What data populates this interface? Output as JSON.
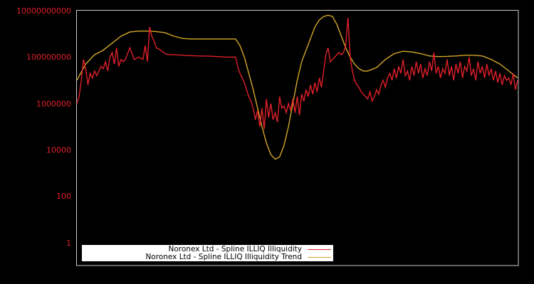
{
  "chart_data": {
    "type": "line",
    "title": "",
    "xlabel": "",
    "ylabel": "",
    "yscale": "log",
    "ylim": [
      0.3,
      10000000000
    ],
    "yticks": [
      1,
      100,
      10000,
      1000000,
      100000000,
      10000000000
    ],
    "ytick_labels": [
      "1",
      "100",
      "10000",
      "1000000",
      "100000000",
      "10000000000"
    ],
    "xticks": [],
    "grid": false,
    "legend_position": "lower-left",
    "series": [
      {
        "name": "Noronex Ltd - Spline ILLIQ Illiquidity",
        "color": "#e0202a",
        "x_norm": [
          0,
          0.005,
          0.01,
          0.015,
          0.02,
          0.025,
          0.03,
          0.035,
          0.04,
          0.045,
          0.05,
          0.055,
          0.06,
          0.065,
          0.07,
          0.075,
          0.08,
          0.085,
          0.09,
          0.095,
          0.1,
          0.105,
          0.11,
          0.12,
          0.13,
          0.14,
          0.15,
          0.155,
          0.16,
          0.165,
          0.17,
          0.175,
          0.18,
          0.19,
          0.2,
          0.21,
          0.22,
          0.24,
          0.26,
          0.28,
          0.3,
          0.32,
          0.34,
          0.36,
          0.365,
          0.37,
          0.375,
          0.38,
          0.385,
          0.39,
          0.395,
          0.4,
          0.405,
          0.41,
          0.415,
          0.42,
          0.425,
          0.43,
          0.435,
          0.44,
          0.445,
          0.45,
          0.455,
          0.46,
          0.465,
          0.47,
          0.475,
          0.48,
          0.485,
          0.49,
          0.495,
          0.5,
          0.505,
          0.51,
          0.515,
          0.52,
          0.525,
          0.53,
          0.535,
          0.54,
          0.545,
          0.55,
          0.555,
          0.56,
          0.565,
          0.57,
          0.575,
          0.58,
          0.585,
          0.59,
          0.595,
          0.6,
          0.605,
          0.61,
          0.615,
          0.62,
          0.625,
          0.63,
          0.635,
          0.64,
          0.645,
          0.65,
          0.655,
          0.66,
          0.665,
          0.67,
          0.675,
          0.68,
          0.685,
          0.69,
          0.695,
          0.7,
          0.705,
          0.71,
          0.715,
          0.72,
          0.725,
          0.73,
          0.735,
          0.74,
          0.745,
          0.75,
          0.755,
          0.76,
          0.765,
          0.77,
          0.775,
          0.78,
          0.785,
          0.79,
          0.795,
          0.8,
          0.805,
          0.81,
          0.815,
          0.82,
          0.825,
          0.83,
          0.835,
          0.84,
          0.845,
          0.85,
          0.855,
          0.86,
          0.865,
          0.87,
          0.875,
          0.88,
          0.885,
          0.89,
          0.895,
          0.9,
          0.905,
          0.91,
          0.915,
          0.92,
          0.925,
          0.93,
          0.935,
          0.94,
          0.945,
          0.95,
          0.955,
          0.96,
          0.965,
          0.97,
          0.975,
          0.98,
          0.985,
          0.99,
          0.995,
          1
        ],
        "y_log10": [
          6.0,
          6.3,
          7.0,
          7.9,
          7.5,
          6.8,
          7.3,
          7.1,
          7.4,
          7.2,
          7.4,
          7.6,
          7.5,
          7.8,
          7.4,
          8.0,
          8.2,
          7.7,
          8.4,
          7.6,
          7.9,
          7.8,
          7.9,
          8.4,
          7.9,
          8.0,
          7.9,
          8.5,
          7.8,
          9.3,
          8.9,
          8.7,
          8.4,
          8.3,
          8.15,
          8.1,
          8.1,
          8.08,
          8.06,
          8.05,
          8.04,
          8.02,
          8.0,
          8.0,
          7.6,
          7.3,
          7.1,
          6.9,
          6.6,
          6.3,
          6.1,
          5.8,
          5.3,
          5.7,
          5.0,
          5.8,
          4.9,
          6.2,
          5.4,
          6.0,
          5.3,
          5.6,
          5.2,
          6.3,
          5.8,
          5.9,
          5.6,
          6.0,
          5.7,
          6.2,
          5.6,
          6.3,
          5.5,
          6.4,
          6.1,
          6.6,
          6.3,
          6.8,
          6.4,
          6.9,
          6.5,
          7.1,
          6.7,
          7.4,
          8.1,
          8.4,
          7.8,
          7.9,
          8.0,
          8.1,
          8.2,
          8.1,
          8.2,
          8.5,
          9.7,
          8.0,
          7.4,
          7.0,
          6.8,
          6.7,
          6.5,
          6.4,
          6.3,
          6.2,
          6.5,
          6.1,
          6.3,
          6.6,
          6.4,
          6.8,
          7.0,
          6.7,
          7.1,
          7.3,
          7.0,
          7.5,
          7.1,
          7.6,
          7.3,
          7.9,
          7.2,
          7.4,
          7.0,
          7.6,
          7.2,
          7.8,
          7.3,
          7.7,
          7.1,
          7.5,
          7.2,
          7.8,
          7.4,
          8.2,
          7.3,
          7.6,
          7.1,
          7.5,
          7.3,
          7.9,
          7.2,
          7.6,
          7.0,
          7.7,
          7.3,
          7.8,
          7.1,
          7.6,
          7.4,
          8.0,
          7.2,
          7.5,
          7.0,
          7.8,
          7.3,
          7.6,
          7.1,
          7.7,
          7.2,
          7.5,
          7.0,
          7.4,
          6.9,
          7.3,
          6.8,
          7.2,
          7.0,
          7.1,
          6.8,
          7.3,
          6.6,
          7.0,
          6.5,
          6.8,
          6.6,
          6.3,
          6.0
        ]
      },
      {
        "name": "Noronex Ltd - Spline ILLIQ Illiquidity Trend",
        "color": "#d4a82a",
        "x_norm": [
          0,
          0.02,
          0.04,
          0.06,
          0.08,
          0.1,
          0.12,
          0.14,
          0.16,
          0.18,
          0.2,
          0.22,
          0.24,
          0.26,
          0.28,
          0.3,
          0.32,
          0.34,
          0.36,
          0.37,
          0.38,
          0.39,
          0.4,
          0.41,
          0.42,
          0.43,
          0.44,
          0.45,
          0.46,
          0.47,
          0.48,
          0.49,
          0.5,
          0.51,
          0.52,
          0.53,
          0.54,
          0.55,
          0.56,
          0.57,
          0.58,
          0.59,
          0.6,
          0.61,
          0.62,
          0.63,
          0.64,
          0.65,
          0.66,
          0.68,
          0.7,
          0.72,
          0.74,
          0.76,
          0.78,
          0.8,
          0.82,
          0.84,
          0.86,
          0.88,
          0.9,
          0.92,
          0.94,
          0.96,
          0.98,
          1
        ],
        "y_log10": [
          7.0,
          7.7,
          8.1,
          8.3,
          8.6,
          8.9,
          9.08,
          9.12,
          9.12,
          9.1,
          9.05,
          8.9,
          8.8,
          8.78,
          8.78,
          8.78,
          8.78,
          8.78,
          8.78,
          8.5,
          8.0,
          7.3,
          6.6,
          5.8,
          5.0,
          4.3,
          3.8,
          3.6,
          3.7,
          4.2,
          5.0,
          6.0,
          7.0,
          7.8,
          8.3,
          8.8,
          9.3,
          9.6,
          9.75,
          9.8,
          9.75,
          9.4,
          8.9,
          8.4,
          8.0,
          7.7,
          7.5,
          7.4,
          7.4,
          7.55,
          7.9,
          8.15,
          8.25,
          8.22,
          8.15,
          8.05,
          8.02,
          8.03,
          8.05,
          8.08,
          8.08,
          8.05,
          7.9,
          7.7,
          7.4,
          7.1
        ]
      }
    ]
  },
  "legend": {
    "items": [
      {
        "label": "Noronex Ltd - Spline ILLIQ Illiquidity",
        "color": "#e0202a"
      },
      {
        "label": "Noronex Ltd - Spline ILLIQ Illiquidity Trend",
        "color": "#d4a82a"
      }
    ]
  },
  "style": {
    "background": "#000000",
    "frame_color": "#c8c8c8",
    "tick_label_color": "#e0202a"
  }
}
